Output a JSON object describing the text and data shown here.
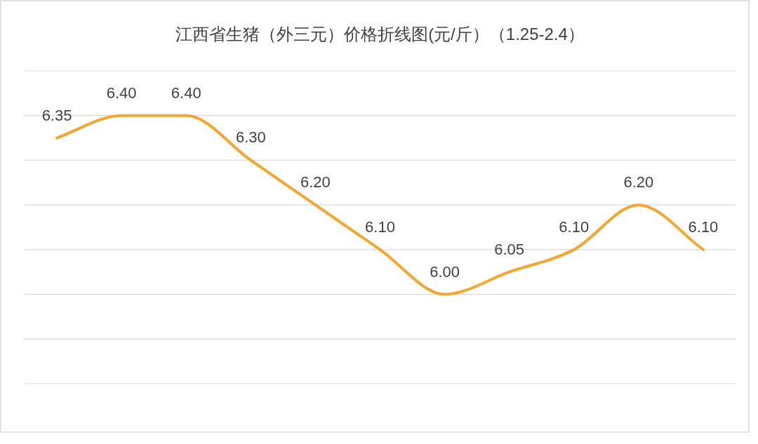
{
  "chart_data": {
    "type": "line",
    "title": "江西省生猪（外三元）价格折线图(元/斤）（1.25-2.4）",
    "categories": [
      null,
      null,
      null,
      null,
      null,
      null,
      null,
      null,
      null,
      null,
      null
    ],
    "series": [
      {
        "color": "#f6a52e",
        "values": [
          6.35,
          6.4,
          6.4,
          6.3,
          6.2,
          6.1,
          6.0,
          6.05,
          6.1,
          6.2,
          6.1
        ],
        "value_labels": [
          "6.35",
          "6.40",
          "6.40",
          "6.30",
          "6.20",
          "6.10",
          "6.00",
          "6.05",
          "6.10",
          "6.20",
          "6.10"
        ]
      }
    ],
    "ylim": [
      5.8,
      6.5
    ],
    "yticks": [
      {
        "value": 5.8,
        "label": null
      },
      {
        "value": 5.9,
        "label": null
      },
      {
        "value": 6.0,
        "label": null
      },
      {
        "value": 6.1,
        "label": null
      },
      {
        "value": 6.2,
        "label": null
      },
      {
        "value": 6.3,
        "label": null
      },
      {
        "value": 6.4,
        "label": null
      },
      {
        "value": 6.5,
        "label": null
      }
    ],
    "grid": "y",
    "marker": "none",
    "line_style": "solid"
  }
}
